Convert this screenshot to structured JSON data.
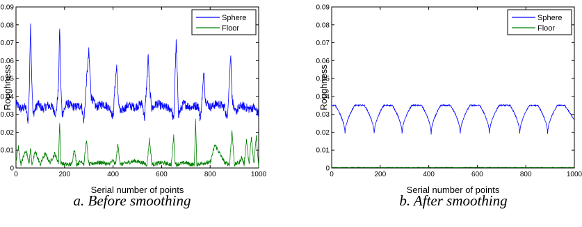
{
  "chart_data": [
    {
      "type": "line",
      "caption": "a. Before smoothing",
      "xlabel": "Serial number of points",
      "ylabel": "Roughness",
      "xlim": [
        0,
        1000
      ],
      "ylim": [
        0,
        0.09
      ],
      "xticks": [
        "0",
        "200",
        "400",
        "600",
        "800",
        "1000"
      ],
      "yticks": [
        "0",
        "0.01",
        "0.02",
        "0.03",
        "0.04",
        "0.05",
        "0.06",
        "0.07",
        "0.08",
        "0.09"
      ],
      "legend_position": "top-right",
      "series": [
        {
          "name": "Sphere",
          "color": "#0000ff",
          "x": [
            0,
            20,
            40,
            50,
            55,
            60,
            65,
            70,
            90,
            110,
            130,
            150,
            165,
            175,
            180,
            185,
            190,
            210,
            240,
            270,
            280,
            290,
            300,
            310,
            330,
            360,
            390,
            400,
            410,
            415,
            420,
            430,
            460,
            490,
            520,
            530,
            540,
            545,
            550,
            560,
            580,
            610,
            640,
            650,
            655,
            660,
            665,
            670,
            690,
            720,
            750,
            760,
            770,
            775,
            780,
            800,
            830,
            860,
            870,
            880,
            885,
            890,
            900,
            930,
            960,
            980,
            1000
          ],
          "values": [
            0.036,
            0.033,
            0.034,
            0.026,
            0.045,
            0.082,
            0.05,
            0.03,
            0.036,
            0.033,
            0.035,
            0.034,
            0.03,
            0.045,
            0.079,
            0.045,
            0.03,
            0.036,
            0.034,
            0.035,
            0.026,
            0.048,
            0.065,
            0.04,
            0.034,
            0.036,
            0.033,
            0.028,
            0.05,
            0.057,
            0.04,
            0.031,
            0.035,
            0.034,
            0.036,
            0.028,
            0.05,
            0.063,
            0.045,
            0.033,
            0.036,
            0.034,
            0.033,
            0.026,
            0.05,
            0.07,
            0.05,
            0.03,
            0.036,
            0.034,
            0.035,
            0.027,
            0.045,
            0.055,
            0.038,
            0.034,
            0.036,
            0.034,
            0.027,
            0.05,
            0.065,
            0.04,
            0.031,
            0.035,
            0.033,
            0.034,
            0.03
          ]
        },
        {
          "name": "Floor",
          "color": "#008000",
          "x": [
            0,
            10,
            20,
            40,
            55,
            60,
            65,
            80,
            100,
            120,
            140,
            160,
            175,
            180,
            185,
            200,
            230,
            240,
            250,
            270,
            280,
            290,
            300,
            330,
            360,
            380,
            400,
            410,
            420,
            430,
            460,
            490,
            520,
            540,
            550,
            560,
            600,
            640,
            650,
            655,
            660,
            700,
            720,
            735,
            740,
            745,
            780,
            800,
            820,
            860,
            880,
            890,
            900,
            920,
            930,
            940,
            950,
            960,
            970,
            980,
            990,
            1000
          ],
          "values": [
            0.003,
            0.012,
            0.002,
            0.01,
            0.003,
            0.012,
            0.002,
            0.009,
            0.002,
            0.008,
            0.003,
            0.008,
            0.003,
            0.026,
            0.003,
            0.002,
            0.002,
            0.011,
            0.002,
            0.004,
            0.002,
            0.016,
            0.002,
            0.003,
            0.003,
            0.002,
            0.004,
            0.002,
            0.013,
            0.002,
            0.003,
            0.004,
            0.003,
            0.002,
            0.016,
            0.002,
            0.003,
            0.002,
            0.018,
            0.004,
            0.002,
            0.003,
            0.002,
            0.002,
            0.027,
            0.002,
            0.003,
            0.003,
            0.013,
            0.003,
            0.002,
            0.021,
            0.002,
            0.003,
            0.006,
            0.002,
            0.016,
            0.002,
            0.017,
            0.002,
            0.018,
            0.001
          ]
        }
      ]
    },
    {
      "type": "line",
      "caption": "b. After smoothing",
      "xlabel": "Serial number of points",
      "ylabel": "Roughness",
      "xlim": [
        0,
        1000
      ],
      "ylim": [
        0,
        0.09
      ],
      "xticks": [
        "0",
        "200",
        "400",
        "600",
        "800",
        "1000"
      ],
      "yticks": [
        "0",
        "0.01",
        "0.02",
        "0.03",
        "0.04",
        "0.05",
        "0.06",
        "0.07",
        "0.08",
        "0.09"
      ],
      "legend_position": "top-right",
      "series": [
        {
          "name": "Sphere",
          "color": "#0000ff",
          "dip_positions": [
            55,
            175,
            290,
            410,
            530,
            650,
            775,
            890
          ],
          "peak_value": 0.035,
          "dip_value": 0.019,
          "values_at_start": 0.035,
          "values_at_end": 0.027
        },
        {
          "name": "Floor",
          "color": "#008000",
          "value": 0.0003
        }
      ]
    }
  ]
}
